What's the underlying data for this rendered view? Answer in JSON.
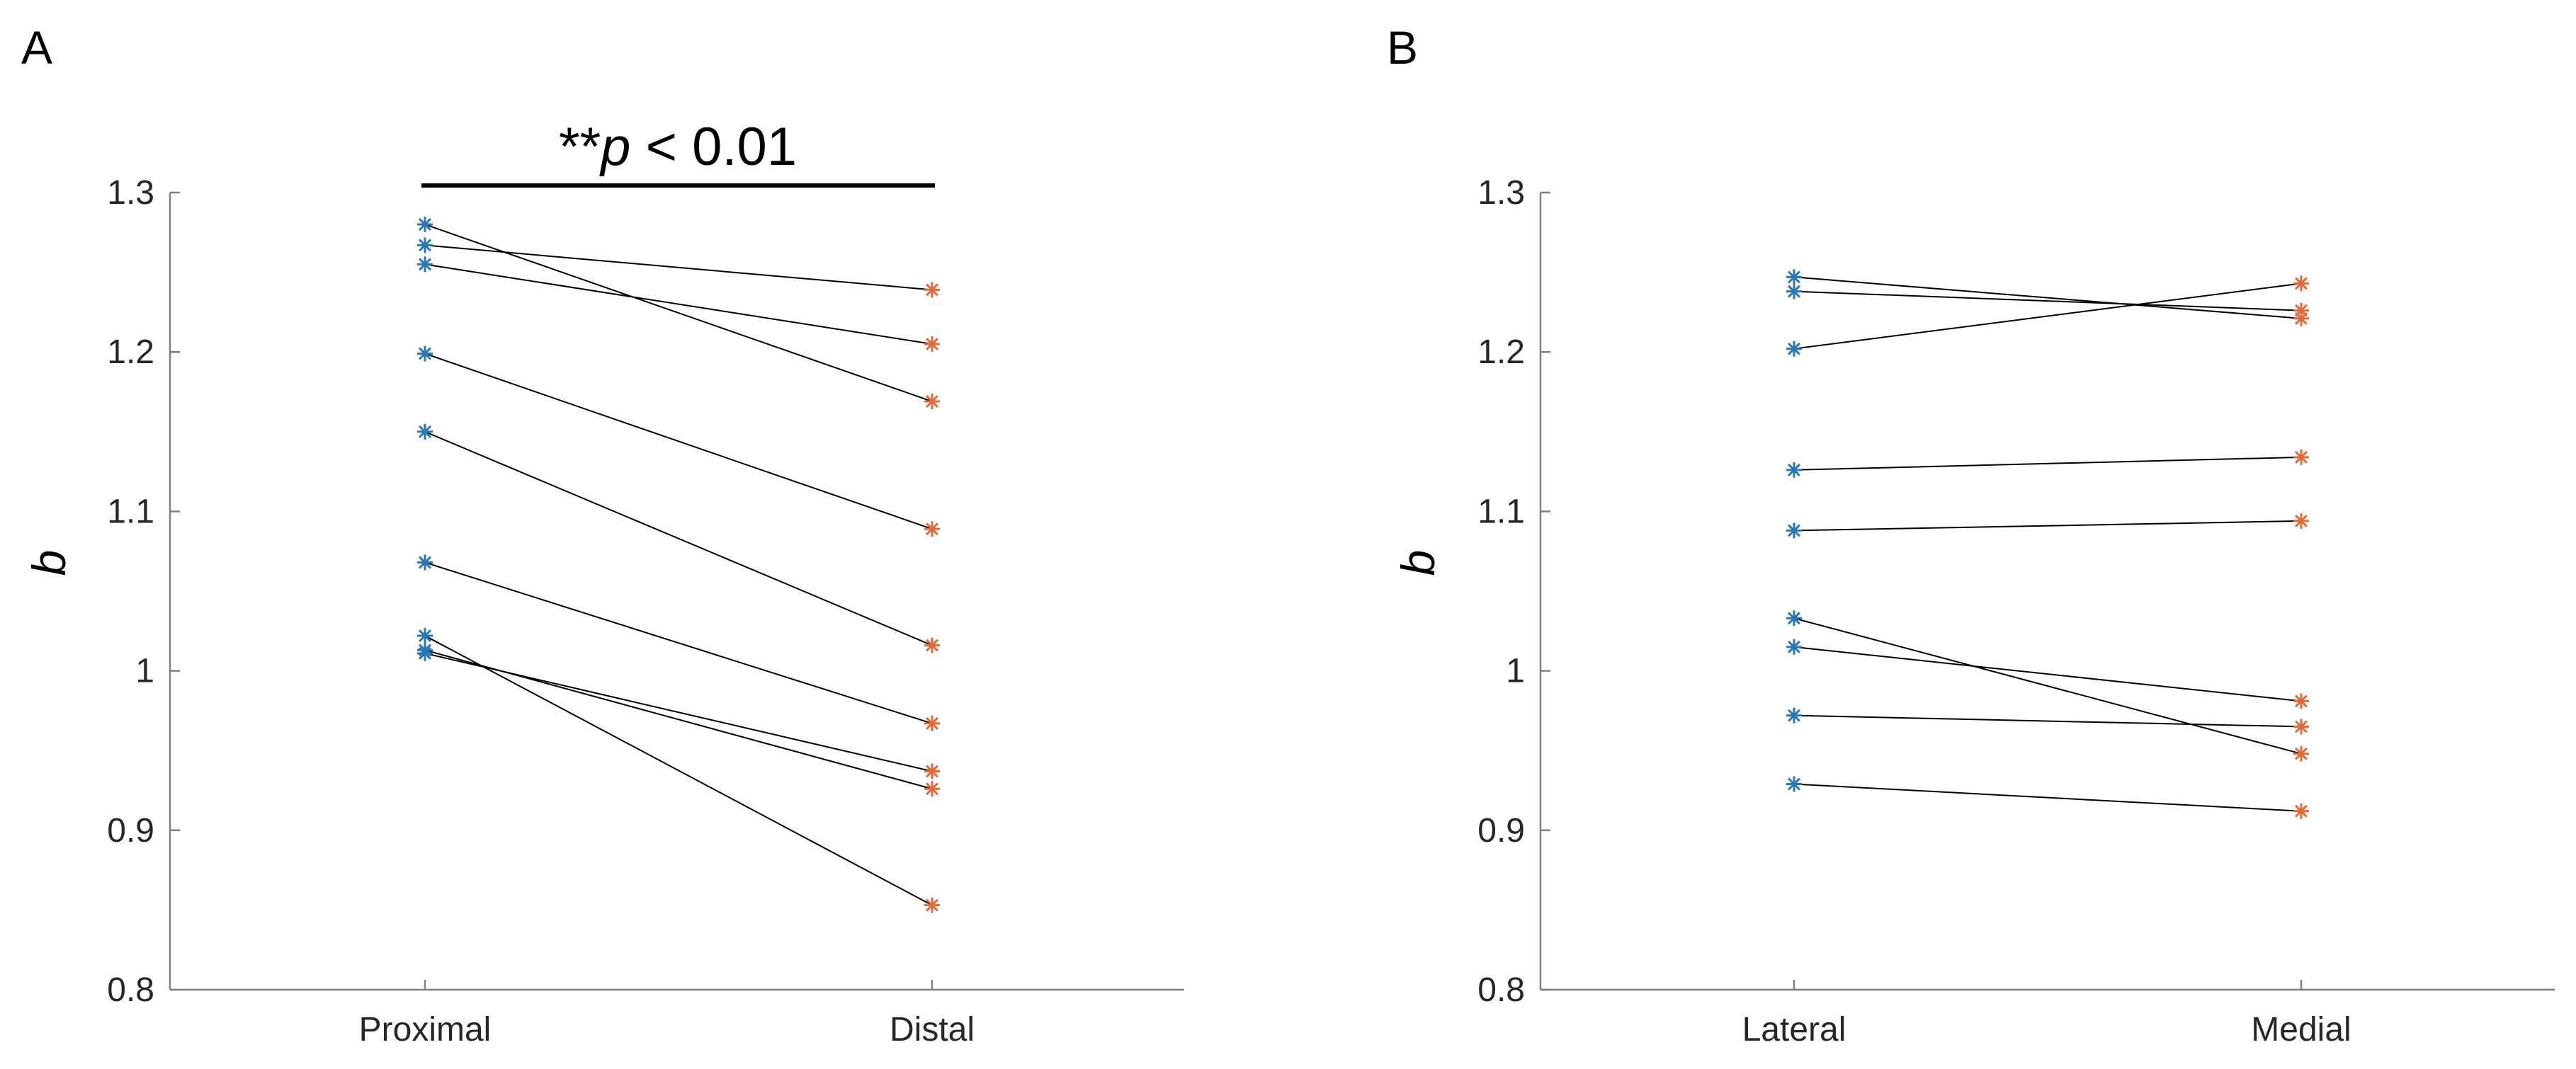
{
  "figure": {
    "panels": [
      {
        "letter": "A",
        "significance": {
          "prefix": "**",
          "symbol": "p",
          "suffix": " < 0.01"
        }
      },
      {
        "letter": "B",
        "significance": null
      }
    ]
  },
  "colors": {
    "group1_marker": "#2878b5",
    "group2_marker": "#e2693a",
    "connector": "#000000",
    "axis": "#7f7f7f"
  },
  "chart_data": [
    {
      "type": "scatter",
      "title": "",
      "xlabel": "",
      "ylabel": "b",
      "categories": [
        "Proximal",
        "Distal"
      ],
      "ylim": [
        0.8,
        1.3
      ],
      "yticks": [
        "0.8",
        "0.9",
        "1",
        "1.1",
        "1.2",
        "1.3"
      ],
      "ytick_values": [
        0.8,
        0.9,
        1.0,
        1.1,
        1.2,
        1.3
      ],
      "pairs": [
        [
          1.28,
          1.169
        ],
        [
          1.267,
          1.239
        ],
        [
          1.255,
          1.205
        ],
        [
          1.199,
          1.089
        ],
        [
          1.15,
          1.016
        ],
        [
          1.068,
          0.967
        ],
        [
          1.022,
          0.853
        ],
        [
          1.013,
          0.926
        ],
        [
          1.011,
          0.937
        ]
      ],
      "annotation": "**p < 0.01"
    },
    {
      "type": "scatter",
      "title": "",
      "xlabel": "",
      "ylabel": "b",
      "categories": [
        "Lateral",
        "Medial"
      ],
      "ylim": [
        0.8,
        1.3
      ],
      "yticks": [
        "0.8",
        "0.9",
        "1",
        "1.1",
        "1.2",
        "1.3"
      ],
      "ytick_values": [
        0.8,
        0.9,
        1.0,
        1.1,
        1.2,
        1.3
      ],
      "pairs": [
        [
          1.247,
          1.221
        ],
        [
          1.238,
          1.226
        ],
        [
          1.202,
          1.243
        ],
        [
          1.126,
          1.134
        ],
        [
          1.088,
          1.094
        ],
        [
          1.033,
          0.948
        ],
        [
          1.015,
          0.981
        ],
        [
          0.972,
          0.965
        ],
        [
          0.929,
          0.912
        ]
      ]
    }
  ]
}
